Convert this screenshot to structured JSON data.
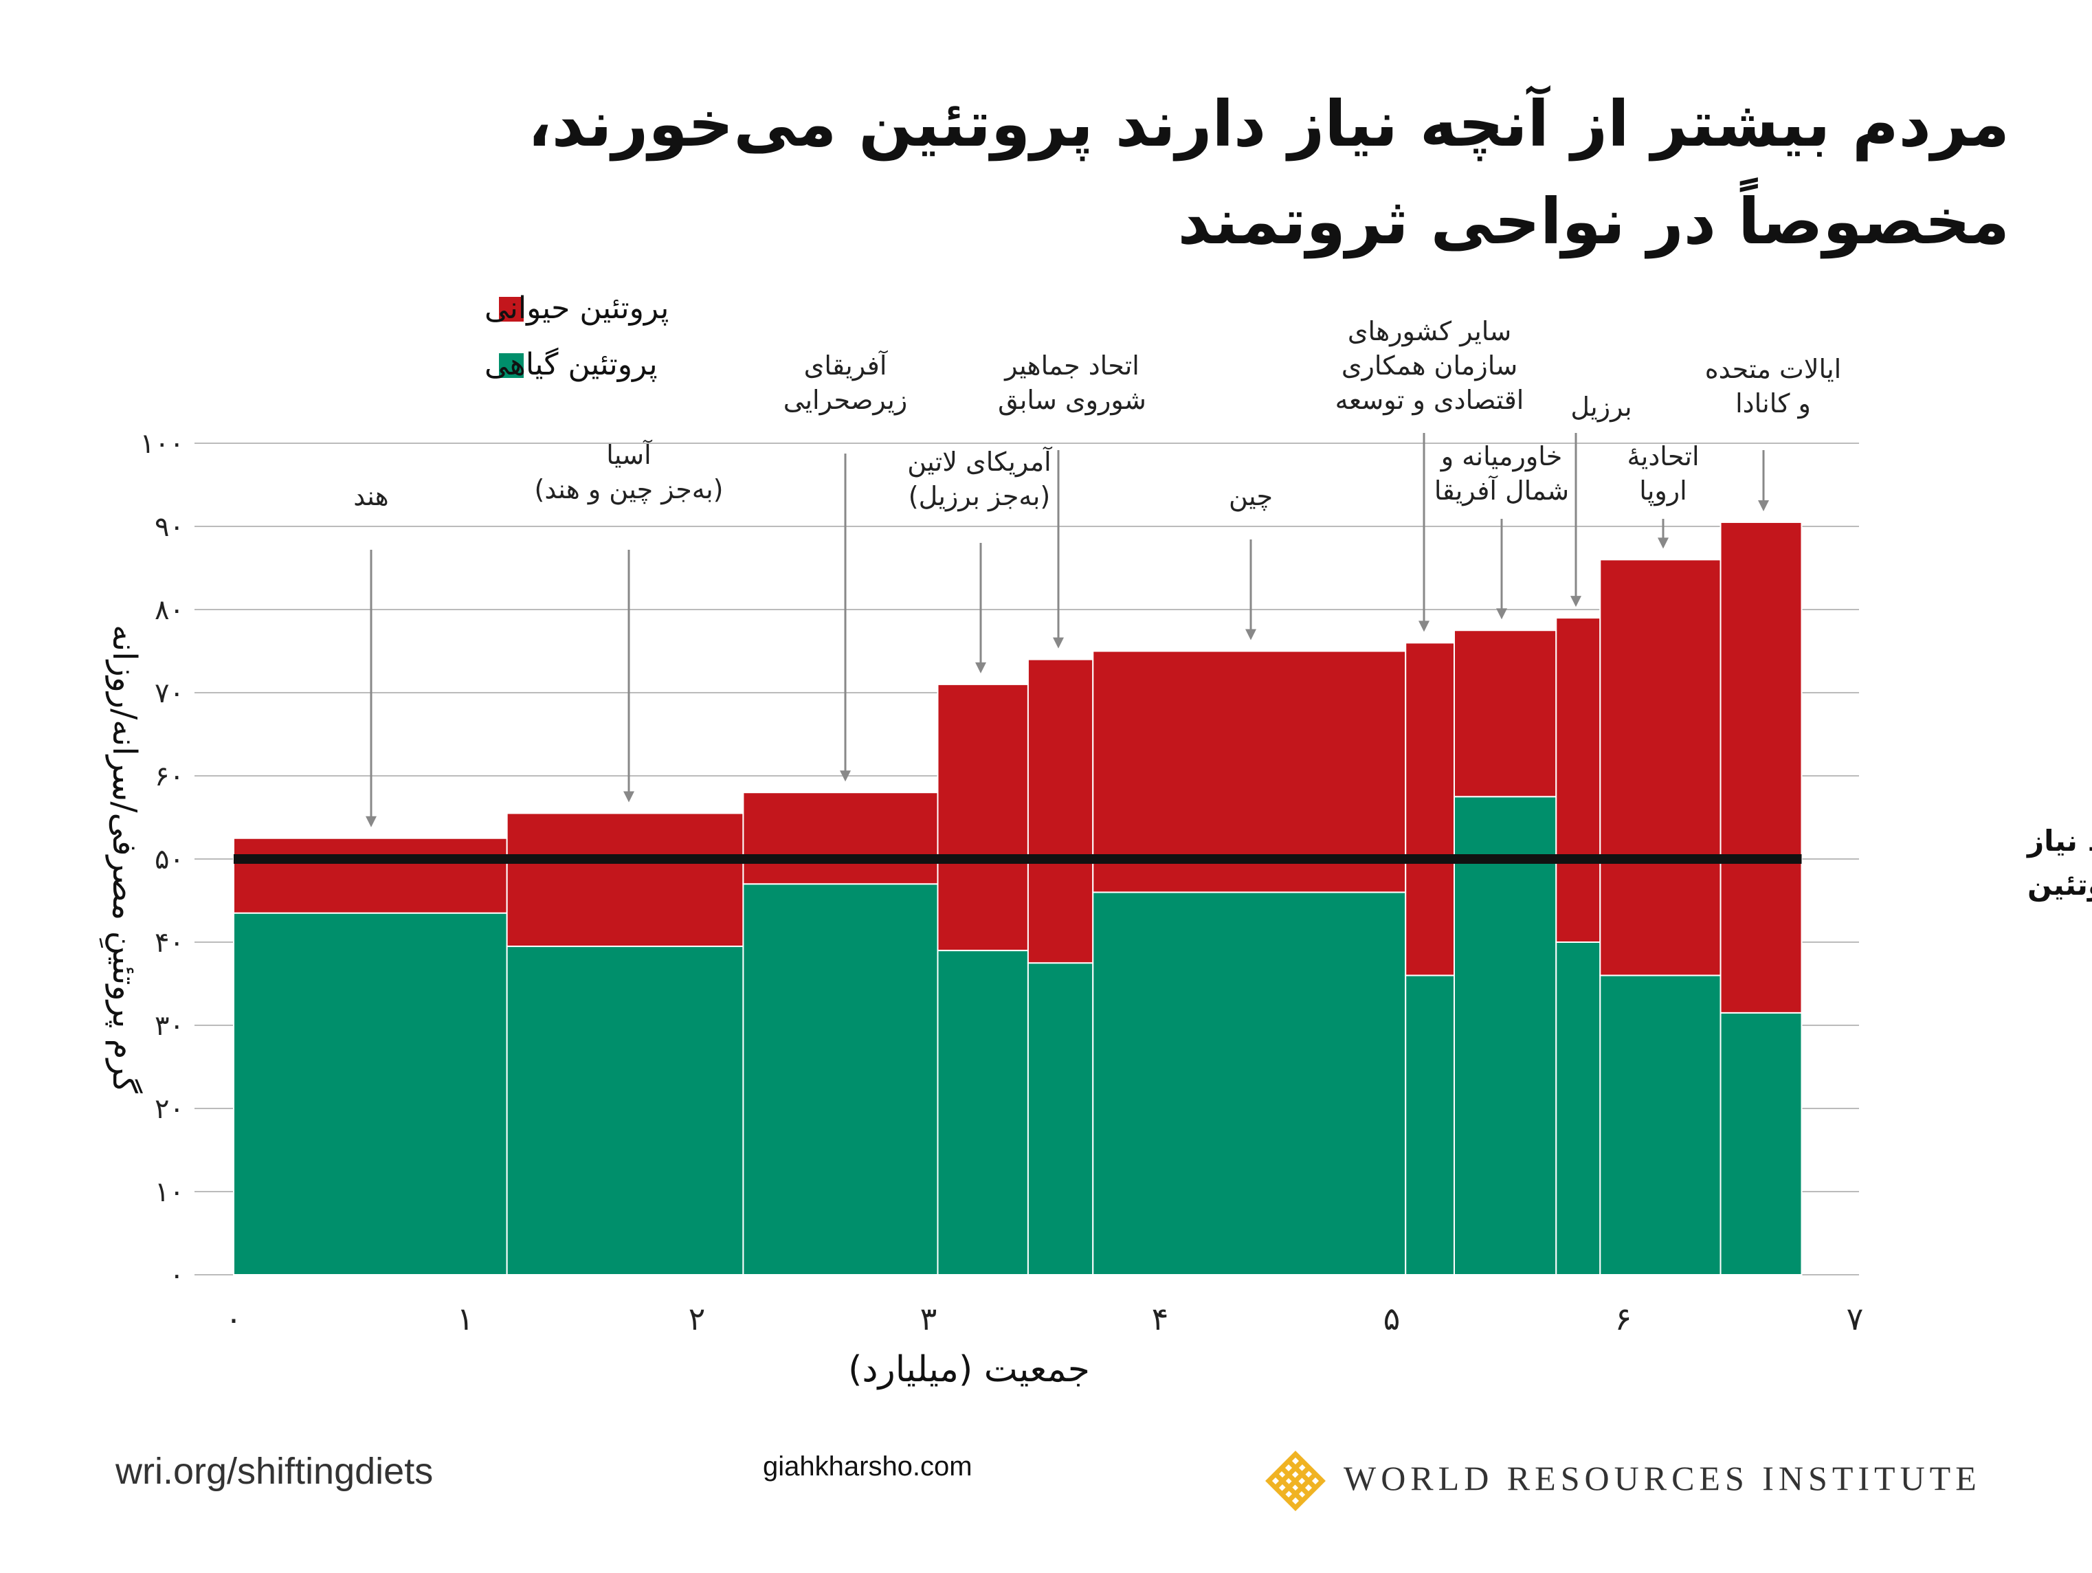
{
  "title_line1": "مردم بیشتر از آنچه نیاز دارند پروتئین می‌خورند،",
  "title_line2": "مخصوصاً در نواحی ثروتمند",
  "footer": {
    "url": "wri.org/shiftingdiets",
    "site": "giahkharsho.com",
    "org": "WORLD RESOURCES INSTITUTE"
  },
  "colors": {
    "animal": "#c3161c",
    "plant": "#008f6b",
    "requirement": "#111111",
    "grid": "#bbbbbb"
  },
  "chart_data": {
    "type": "bar",
    "variable_width": true,
    "stacked": true,
    "xlabel": "جمعیت (میلیارد)",
    "ylabel": "گرم پروتئینِ مصرفی/سرانه/روزانه",
    "xlim": [
      0,
      7
    ],
    "ylim": [
      0,
      100
    ],
    "x_ticks": [
      "۰",
      "۱",
      "۲",
      "۳",
      "۴",
      "۵",
      "۶",
      "۷"
    ],
    "y_ticks": [
      "۰",
      "۱۰",
      "۲۰",
      "۳۰",
      "۴۰",
      "۵۰",
      "۶۰",
      "۷۰",
      "۸۰",
      "۹۰",
      "۱۰۰"
    ],
    "legend": [
      {
        "name": "پروتئین حیوانی",
        "color": "#c3161c"
      },
      {
        "name": "پروتئین گیاهی",
        "color": "#008f6b"
      }
    ],
    "legend_position": "top-left",
    "grid": true,
    "requirement": {
      "value": 50,
      "label_line1": "متوسط نیاز",
      "label_line2": "روزانهٔ پروتئین"
    },
    "regions": [
      {
        "label": [
          "هند"
        ],
        "x0": 0,
        "x1": 1.18,
        "plant": 43.5,
        "total": 52.5
      },
      {
        "label": [
          "آسیا",
          "(به‌جز چین و هند)"
        ],
        "x0": 1.18,
        "x1": 2.2,
        "plant": 39.5,
        "total": 55.5
      },
      {
        "label": [
          "آفریقای",
          "زیرصحرایی"
        ],
        "x0": 2.2,
        "x1": 3.04,
        "plant": 47,
        "total": 58
      },
      {
        "label": [
          "آمریکای لاتین",
          "(به‌جز برزیل)"
        ],
        "x0": 3.04,
        "x1": 3.43,
        "plant": 39,
        "total": 71
      },
      {
        "label": [
          "اتحاد جماهیر",
          "شوروی سابق"
        ],
        "x0": 3.43,
        "x1": 3.71,
        "plant": 37.5,
        "total": 74
      },
      {
        "label": [
          "چین"
        ],
        "x0": 3.71,
        "x1": 5.06,
        "plant": 46,
        "total": 75
      },
      {
        "label": [
          "سایر کشورهای",
          "سازمان همکاری",
          "اقتصادی و توسعه"
        ],
        "x0": 5.06,
        "x1": 5.27,
        "plant": 36,
        "total": 76
      },
      {
        "label": [
          "خاورمیانه و",
          "شمال آفریقا"
        ],
        "x0": 5.27,
        "x1": 5.71,
        "plant": 57.5,
        "total": 77.5
      },
      {
        "label": [
          "برزیل"
        ],
        "x0": 5.71,
        "x1": 5.9,
        "plant": 40,
        "total": 79
      },
      {
        "label": [
          "اتحادیهٔ",
          "اروپا"
        ],
        "x0": 5.9,
        "x1": 6.42,
        "plant": 36,
        "total": 86
      },
      {
        "label": [
          "ایالات متحده",
          "و کانادا"
        ],
        "x0": 6.42,
        "x1": 6.77,
        "plant": 31.5,
        "total": 90.5
      }
    ]
  }
}
